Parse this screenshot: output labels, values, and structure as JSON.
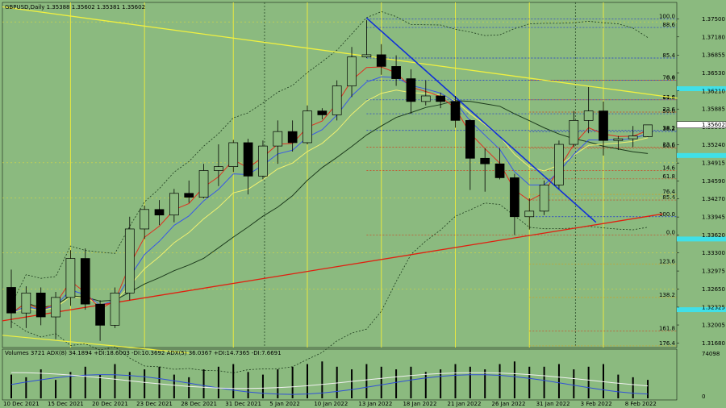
{
  "header": {
    "title": "GBPUSD,Daily  1.35388  1.35602  1.35381  1.35602"
  },
  "volume_header": {
    "text": "Volumes 3721  ADX(8) 34.1894 +DI:18.6003 -DI:10.3692  ADX(5) 36.0367 +DI:14.7365 -DI:7.6691"
  },
  "chart_data": {
    "type": "candlestick",
    "symbol": "GBPUSD",
    "timeframe": "Daily",
    "ylim": [
      1.316,
      1.378
    ],
    "price_ticks": [
      1.375,
      1.3718,
      1.36855,
      1.3653,
      1.3621,
      1.35885,
      1.3556,
      1.3524,
      1.34915,
      1.3459,
      1.3427,
      1.33945,
      1.3362,
      1.333,
      1.32975,
      1.3265,
      1.32325,
      1.32005,
      1.3168
    ],
    "price_tick_labels": [
      "1.37500",
      "1.37180",
      "1.36855",
      "1.36530",
      "1.36210",
      "1.35885",
      "1.35560",
      "1.35240",
      "1.34915",
      "1.34590",
      "1.34270",
      "1.33945",
      "1.33620",
      "1.33300",
      "1.32975",
      "1.32650",
      "1.32325",
      "1.32005",
      "1.31680"
    ],
    "current_price": {
      "value": 1.35602,
      "label": "1.35602"
    },
    "x_labels": [
      "10 Dec 2021",
      "15 Dec 2021",
      "20 Dec 2021",
      "23 Dec 2021",
      "28 Dec 2021",
      "31 Dec 2021",
      "5 Jan 2022",
      "10 Jan 2022",
      "13 Jan 2022",
      "18 Jan 2022",
      "21 Jan 2022",
      "26 Jan 2022",
      "31 Jan 2022",
      "3 Feb 2022",
      "8 Feb 2022"
    ],
    "x_label_index": [
      0,
      3,
      6,
      9,
      12,
      15,
      18,
      21,
      24,
      27,
      30,
      33,
      36,
      39,
      42
    ],
    "candles": [
      {
        "o": 1.3268,
        "h": 1.33,
        "l": 1.3195,
        "c": 1.3222
      },
      {
        "o": 1.3222,
        "h": 1.327,
        "l": 1.3195,
        "c": 1.3258
      },
      {
        "o": 1.3258,
        "h": 1.3268,
        "l": 1.32,
        "c": 1.3215
      },
      {
        "o": 1.3215,
        "h": 1.326,
        "l": 1.3175,
        "c": 1.325
      },
      {
        "o": 1.325,
        "h": 1.3335,
        "l": 1.3235,
        "c": 1.332
      },
      {
        "o": 1.332,
        "h": 1.3338,
        "l": 1.3228,
        "c": 1.3238
      },
      {
        "o": 1.3238,
        "h": 1.3245,
        "l": 1.3172,
        "c": 1.32
      },
      {
        "o": 1.32,
        "h": 1.3268,
        "l": 1.3195,
        "c": 1.3258
      },
      {
        "o": 1.3258,
        "h": 1.3395,
        "l": 1.3245,
        "c": 1.3373
      },
      {
        "o": 1.3373,
        "h": 1.3415,
        "l": 1.3355,
        "c": 1.3408
      },
      {
        "o": 1.3408,
        "h": 1.3425,
        "l": 1.338,
        "c": 1.3398
      },
      {
        "o": 1.3398,
        "h": 1.3445,
        "l": 1.3385,
        "c": 1.3437
      },
      {
        "o": 1.3437,
        "h": 1.346,
        "l": 1.342,
        "c": 1.343
      },
      {
        "o": 1.343,
        "h": 1.349,
        "l": 1.3428,
        "c": 1.3478
      },
      {
        "o": 1.3478,
        "h": 1.3525,
        "l": 1.345,
        "c": 1.3485
      },
      {
        "o": 1.3485,
        "h": 1.3533,
        "l": 1.3475,
        "c": 1.3528
      },
      {
        "o": 1.3528,
        "h": 1.3535,
        "l": 1.3435,
        "c": 1.3468
      },
      {
        "o": 1.3468,
        "h": 1.3532,
        "l": 1.3462,
        "c": 1.3522
      },
      {
        "o": 1.3522,
        "h": 1.3568,
        "l": 1.349,
        "c": 1.3548
      },
      {
        "o": 1.3548,
        "h": 1.3568,
        "l": 1.3512,
        "c": 1.3528
      },
      {
        "o": 1.3528,
        "h": 1.3595,
        "l": 1.3525,
        "c": 1.3585
      },
      {
        "o": 1.3585,
        "h": 1.359,
        "l": 1.357,
        "c": 1.3578
      },
      {
        "o": 1.3578,
        "h": 1.364,
        "l": 1.3568,
        "c": 1.363
      },
      {
        "o": 1.363,
        "h": 1.37,
        "l": 1.361,
        "c": 1.3682
      },
      {
        "o": 1.3682,
        "h": 1.3748,
        "l": 1.368,
        "c": 1.3686
      },
      {
        "o": 1.3686,
        "h": 1.3705,
        "l": 1.365,
        "c": 1.3665
      },
      {
        "o": 1.3665,
        "h": 1.3685,
        "l": 1.363,
        "c": 1.3643
      },
      {
        "o": 1.3643,
        "h": 1.366,
        "l": 1.358,
        "c": 1.3602
      },
      {
        "o": 1.3602,
        "h": 1.364,
        "l": 1.3595,
        "c": 1.3612
      },
      {
        "o": 1.3612,
        "h": 1.3618,
        "l": 1.359,
        "c": 1.3602
      },
      {
        "o": 1.3602,
        "h": 1.3612,
        "l": 1.3555,
        "c": 1.3568
      },
      {
        "o": 1.3568,
        "h": 1.357,
        "l": 1.3443,
        "c": 1.35
      },
      {
        "o": 1.35,
        "h": 1.3518,
        "l": 1.344,
        "c": 1.349
      },
      {
        "o": 1.349,
        "h": 1.3518,
        "l": 1.3462,
        "c": 1.3465
      },
      {
        "o": 1.3465,
        "h": 1.3472,
        "l": 1.3362,
        "c": 1.3395
      },
      {
        "o": 1.3395,
        "h": 1.3428,
        "l": 1.3372,
        "c": 1.3405
      },
      {
        "o": 1.3405,
        "h": 1.346,
        "l": 1.3398,
        "c": 1.3452
      },
      {
        "o": 1.3452,
        "h": 1.3532,
        "l": 1.3445,
        "c": 1.3525
      },
      {
        "o": 1.3525,
        "h": 1.3585,
        "l": 1.352,
        "c": 1.3568
      },
      {
        "o": 1.3568,
        "h": 1.3628,
        "l": 1.3545,
        "c": 1.3585
      },
      {
        "o": 1.3585,
        "h": 1.3602,
        "l": 1.3505,
        "c": 1.3532
      },
      {
        "o": 1.3532,
        "h": 1.354,
        "l": 1.3515,
        "c": 1.3535
      },
      {
        "o": 1.3535,
        "h": 1.3558,
        "l": 1.352,
        "c": 1.354
      },
      {
        "o": 1.3539,
        "h": 1.356,
        "l": 1.3538,
        "c": 1.356
      }
    ],
    "fib_top": {
      "ticks": [
        "100.0",
        "88.6",
        "85.4",
        "76.4",
        "61.8",
        "50.0",
        "38.2",
        "23.6",
        "14.6",
        "0.0"
      ],
      "levels": [
        1.375,
        1.3735,
        1.368,
        1.364,
        1.3605,
        1.358,
        1.355,
        1.352,
        1.3478,
        1.3362
      ]
    },
    "fib_bottom": {
      "ticks": [
        "0.0",
        "14.6",
        "23.6",
        "38.2",
        "50.0",
        "61.8",
        "76.4",
        "85.4",
        "100.0",
        "123.6",
        "138.2",
        "161.8",
        "176.4"
      ],
      "levels": [
        1.364,
        1.3605,
        1.3583,
        1.3548,
        1.3518,
        1.3463,
        1.3435,
        1.3425,
        1.3395,
        1.331,
        1.325,
        1.319,
        1.3163
      ]
    },
    "highlight_levels": [
      1.3625,
      1.3505,
      1.3355,
      1.3228
    ],
    "volumes": [
      9,
      8,
      11,
      7,
      10,
      12,
      9,
      13,
      10,
      11,
      12,
      9,
      8,
      11,
      12,
      13,
      10,
      9,
      11,
      12,
      13,
      14,
      12,
      11,
      13,
      12,
      11,
      12,
      10,
      11,
      13,
      12,
      11,
      13,
      14,
      12,
      12,
      13,
      11,
      12,
      13,
      9,
      8,
      7
    ],
    "volume_max_label": "74098",
    "volume_zero_label": "0",
    "legend": "none",
    "grid": false
  }
}
